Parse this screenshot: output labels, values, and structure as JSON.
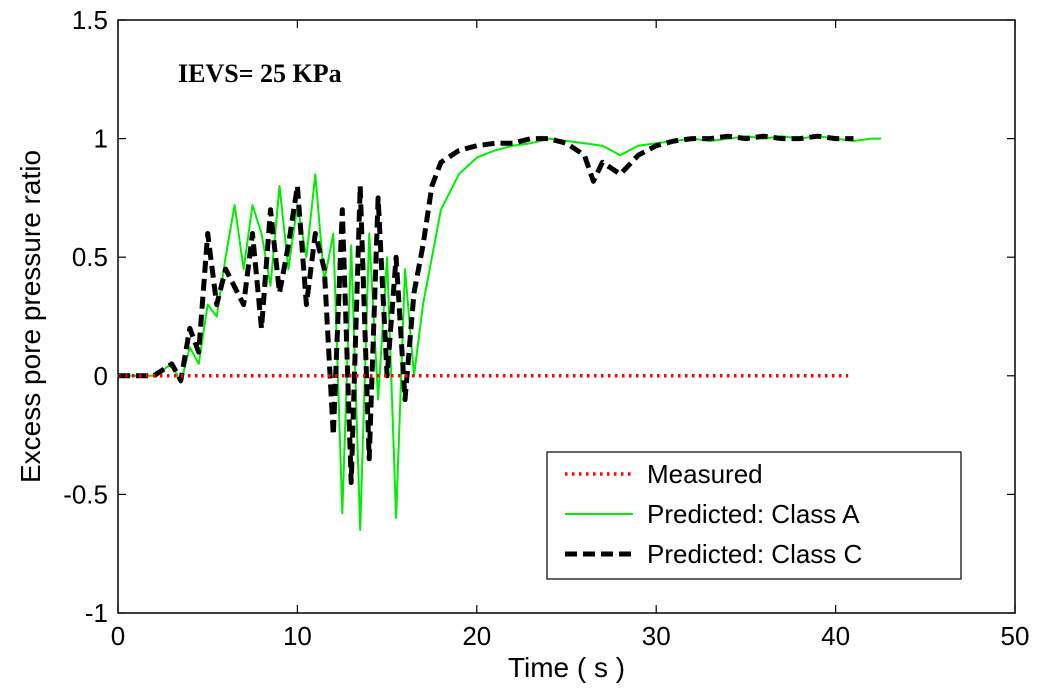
{
  "chart_data": {
    "type": "line",
    "title": "",
    "xlabel": "Time ( s )",
    "ylabel": "Excess pore pressure ratio",
    "xlim": [
      0,
      50
    ],
    "ylim": [
      -1,
      1.5
    ],
    "x_ticks": [
      "0",
      "10",
      "20",
      "30",
      "40",
      "50"
    ],
    "y_ticks": [
      "-1",
      "-0.5",
      "0",
      "0.5",
      "1",
      "1.5"
    ],
    "annotation": "IEVS= 25 KPa",
    "legend_position": "bottom-right",
    "grid": false,
    "series": [
      {
        "name": "Measured",
        "style": "dotted",
        "color": "#ff0000",
        "points": [
          [
            0,
            0
          ],
          [
            40.7,
            0
          ]
        ]
      },
      {
        "name": "Predicted: Class A",
        "style": "solid",
        "color": "#00ee00",
        "points": [
          [
            0,
            0
          ],
          [
            2,
            0
          ],
          [
            3,
            0.05
          ],
          [
            3.5,
            -0.03
          ],
          [
            4,
            0.12
          ],
          [
            4.5,
            0.05
          ],
          [
            5,
            0.3
          ],
          [
            5.5,
            0.25
          ],
          [
            6,
            0.5
          ],
          [
            6.5,
            0.72
          ],
          [
            7,
            0.45
          ],
          [
            7.5,
            0.72
          ],
          [
            8,
            0.6
          ],
          [
            8.5,
            0.38
          ],
          [
            9,
            0.8
          ],
          [
            9.5,
            0.45
          ],
          [
            10,
            0.72
          ],
          [
            10.5,
            0.5
          ],
          [
            11,
            0.85
          ],
          [
            11.5,
            0.4
          ],
          [
            12,
            0.6
          ],
          [
            12.5,
            -0.58
          ],
          [
            13,
            0.55
          ],
          [
            13.5,
            -0.65
          ],
          [
            14,
            0.6
          ],
          [
            14.5,
            -0.1
          ],
          [
            15,
            0.5
          ],
          [
            15.5,
            -0.6
          ],
          [
            16,
            0.45
          ],
          [
            16.5,
            0.0
          ],
          [
            17,
            0.3
          ],
          [
            18,
            0.7
          ],
          [
            19,
            0.85
          ],
          [
            20,
            0.92
          ],
          [
            21,
            0.95
          ],
          [
            22,
            0.97
          ],
          [
            23,
            0.98
          ],
          [
            24,
            1.0
          ],
          [
            25,
            0.99
          ],
          [
            26,
            0.98
          ],
          [
            27,
            0.97
          ],
          [
            28,
            0.93
          ],
          [
            29,
            0.97
          ],
          [
            30,
            0.98
          ],
          [
            31,
            0.99
          ],
          [
            32,
            1.0
          ],
          [
            33,
            0.99
          ],
          [
            34,
            1.0
          ],
          [
            35,
            1.01
          ],
          [
            36,
            1.0
          ],
          [
            37,
            1.01
          ],
          [
            38,
            1.0
          ],
          [
            39,
            1.01
          ],
          [
            40,
            1.0
          ],
          [
            41,
            0.99
          ],
          [
            42,
            1.0
          ],
          [
            42.5,
            1.0
          ]
        ]
      },
      {
        "name": "Predicted: Class C",
        "style": "dashed",
        "color": "#000000",
        "points": [
          [
            0,
            0
          ],
          [
            2,
            0.0
          ],
          [
            3,
            0.05
          ],
          [
            3.5,
            -0.02
          ],
          [
            4,
            0.2
          ],
          [
            4.5,
            0.1
          ],
          [
            5,
            0.6
          ],
          [
            5.5,
            0.3
          ],
          [
            6,
            0.45
          ],
          [
            7,
            0.3
          ],
          [
            7.5,
            0.6
          ],
          [
            8,
            0.2
          ],
          [
            8.5,
            0.7
          ],
          [
            9,
            0.35
          ],
          [
            9.5,
            0.55
          ],
          [
            10,
            0.8
          ],
          [
            10.5,
            0.3
          ],
          [
            11,
            0.6
          ],
          [
            11.5,
            0.45
          ],
          [
            12,
            -0.25
          ],
          [
            12.5,
            0.7
          ],
          [
            13,
            -0.45
          ],
          [
            13.5,
            0.8
          ],
          [
            14,
            -0.35
          ],
          [
            14.5,
            0.75
          ],
          [
            15,
            0.0
          ],
          [
            15.5,
            0.5
          ],
          [
            16,
            -0.1
          ],
          [
            16.5,
            0.35
          ],
          [
            17,
            0.55
          ],
          [
            17.5,
            0.8
          ],
          [
            18,
            0.9
          ],
          [
            19,
            0.95
          ],
          [
            20,
            0.97
          ],
          [
            21,
            0.98
          ],
          [
            22,
            0.98
          ],
          [
            23,
            1.0
          ],
          [
            24,
            1.0
          ],
          [
            25,
            0.98
          ],
          [
            26,
            0.93
          ],
          [
            26.5,
            0.82
          ],
          [
            27,
            0.9
          ],
          [
            28,
            0.85
          ],
          [
            29,
            0.93
          ],
          [
            30,
            0.97
          ],
          [
            31,
            0.99
          ],
          [
            32,
            1.0
          ],
          [
            33,
            1.0
          ],
          [
            34,
            1.01
          ],
          [
            35,
            1.0
          ],
          [
            36,
            1.01
          ],
          [
            37,
            1.0
          ],
          [
            38,
            1.0
          ],
          [
            39,
            1.01
          ],
          [
            40,
            1.0
          ],
          [
            41,
            1.0
          ]
        ]
      }
    ]
  }
}
